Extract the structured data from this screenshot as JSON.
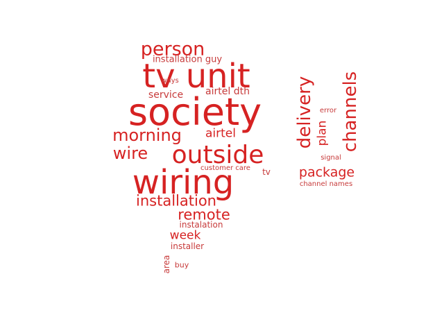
{
  "colors": {
    "primary": "#d62222",
    "secondary": "#c73a3a",
    "background": "#ffffff"
  },
  "words": [
    {
      "text": "society",
      "color": "primary"
    },
    {
      "text": "tv unit",
      "color": "primary"
    },
    {
      "text": "wiring",
      "color": "primary"
    },
    {
      "text": "outside",
      "color": "primary"
    },
    {
      "text": "channels",
      "color": "primary"
    },
    {
      "text": "delivery",
      "color": "primary"
    },
    {
      "text": "person",
      "color": "primary"
    },
    {
      "text": "morning",
      "color": "primary"
    },
    {
      "text": "wire",
      "color": "primary"
    },
    {
      "text": "installation",
      "color": "primary"
    },
    {
      "text": "remote",
      "color": "primary"
    },
    {
      "text": "package",
      "color": "primary"
    },
    {
      "text": "airtel",
      "color": "primary"
    },
    {
      "text": "plan",
      "color": "primary"
    },
    {
      "text": "week",
      "color": "primary"
    },
    {
      "text": "airtel dth",
      "color": "secondary"
    },
    {
      "text": "service",
      "color": "secondary"
    },
    {
      "text": "installation guy",
      "color": "secondary"
    },
    {
      "text": "instalation",
      "color": "secondary"
    },
    {
      "text": "installer",
      "color": "secondary"
    },
    {
      "text": "tv",
      "color": "secondary"
    },
    {
      "text": "area",
      "color": "secondary"
    },
    {
      "text": "buy",
      "color": "secondary"
    },
    {
      "text": "ways",
      "color": "secondary"
    },
    {
      "text": "error",
      "color": "secondary"
    },
    {
      "text": "signal",
      "color": "secondary"
    },
    {
      "text": "customer care",
      "color": "secondary"
    },
    {
      "text": "channel names",
      "color": "secondary"
    }
  ]
}
